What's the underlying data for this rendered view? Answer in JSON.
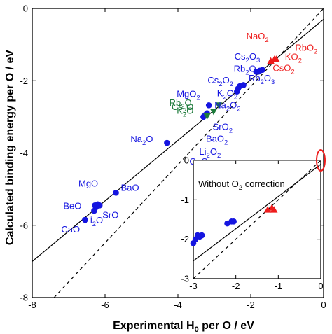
{
  "chart_data": [
    {
      "type": "scatter",
      "title": "",
      "xlabel": {
        "text": "Experimental H",
        "sub": "0",
        "rest": " per O / eV"
      },
      "ylabel": "Calculated binding energy per O / eV",
      "xlim": [
        -8,
        0
      ],
      "ylim": [
        -8,
        0
      ],
      "xticks": [
        -8,
        -6,
        -4,
        -2,
        0
      ],
      "yticks": [
        0,
        -2,
        -4,
        -6,
        -8
      ],
      "x_tick_labels": [
        "-8",
        "-6",
        "-4",
        "-2",
        "0"
      ],
      "y_tick_labels": [
        "0",
        "-2",
        "-4",
        "-6",
        "-8"
      ],
      "colors": {
        "oxide": "#1515e0",
        "superoxide": "#ee1c1c",
        "ozonide": "#1d7a3a"
      },
      "lines": [
        {
          "name": "fit",
          "style": "solid",
          "x": [
            -8,
            0
          ],
          "y": [
            -7.0,
            -0.3
          ]
        },
        {
          "name": "parity",
          "style": "dashed",
          "x": [
            -7.4,
            0
          ],
          "y": [
            -8,
            0
          ]
        }
      ],
      "series": [
        {
          "category": "oxide",
          "marker": "circle",
          "points": [
            {
              "x": -6.55,
              "y": -5.85
            },
            {
              "x": -6.3,
              "y": -5.6
            },
            {
              "x": -6.25,
              "y": -5.5
            },
            {
              "x": -6.2,
              "y": -5.42
            },
            {
              "x": -6.28,
              "y": -5.45
            },
            {
              "x": -6.15,
              "y": -5.45
            },
            {
              "x": -5.7,
              "y": -5.1
            },
            {
              "x": -4.3,
              "y": -3.72
            },
            {
              "x": -3.3,
              "y": -3.0
            },
            {
              "x": -3.25,
              "y": -2.95
            },
            {
              "x": -3.2,
              "y": -2.9
            },
            {
              "x": -3.15,
              "y": -2.68
            },
            {
              "x": -2.38,
              "y": -2.3
            },
            {
              "x": -2.35,
              "y": -2.22
            },
            {
              "x": -2.3,
              "y": -2.15
            },
            {
              "x": -2.2,
              "y": -2.12
            },
            {
              "x": -1.85,
              "y": -1.75
            },
            {
              "x": -1.75,
              "y": -1.72
            },
            {
              "x": -1.68,
              "y": -1.7
            }
          ]
        },
        {
          "category": "ozonide",
          "marker": "triangle-down",
          "points": [
            {
              "x": -3.2,
              "y": -2.98
            },
            {
              "x": -3.02,
              "y": -2.85
            },
            {
              "x": -2.88,
              "y": -2.68
            }
          ]
        },
        {
          "category": "superoxide",
          "marker": "triangle-up",
          "points": [
            {
              "x": -1.45,
              "y": -1.45
            },
            {
              "x": -1.35,
              "y": -1.4
            },
            {
              "x": -1.3,
              "y": -1.4
            }
          ]
        }
      ],
      "labels": [
        {
          "category": "oxide",
          "text": "CaO",
          "x": -6.55,
          "y": -5.85
        },
        {
          "category": "oxide",
          "text": "BeO",
          "x": -6.3,
          "y": -5.45
        },
        {
          "category": "oxide",
          "text": "Li",
          "sub": "2",
          "rest": "O",
          "x": -6.2,
          "y": -5.5
        },
        {
          "category": "oxide",
          "text": "SrO",
          "x": -6.15,
          "y": -5.45
        },
        {
          "category": "oxide",
          "text": "MgO",
          "x": -6.0,
          "y": -5.1
        },
        {
          "category": "oxide",
          "text": "BaO",
          "x": -5.7,
          "y": -5.1
        },
        {
          "category": "oxide",
          "text": "Na",
          "sub": "2",
          "rest": "O",
          "x": -4.3,
          "y": -3.72
        },
        {
          "category": "oxide",
          "text": "MgO",
          "sub": "2",
          "rest": "",
          "x": -3.15,
          "y": -2.68
        },
        {
          "category": "oxide",
          "text": "Cs",
          "sub": "2",
          "rest": "O",
          "sub2": "3",
          "x": -1.68,
          "y": -1.7
        },
        {
          "category": "oxide",
          "text": "Rb",
          "sub": "2",
          "rest": "O",
          "sub2": "2",
          "x": -2.2,
          "y": -2.12
        },
        {
          "category": "oxide",
          "text": "Cs",
          "sub": "2",
          "rest": "O",
          "sub2": "2",
          "x": -2.3,
          "y": -2.15
        },
        {
          "category": "oxide",
          "text": "Rb",
          "sub": "2",
          "rest": "O",
          "sub2": "3",
          "x": -1.75,
          "y": -1.72
        },
        {
          "category": "oxide",
          "text": "K",
          "sub": "2",
          "rest": "O",
          "sub2": "2",
          "x": -2.35,
          "y": -2.22
        },
        {
          "category": "oxide",
          "text": "Na",
          "sub": "2",
          "rest": "O",
          "sub2": "2",
          "x": -2.38,
          "y": -2.3
        },
        {
          "category": "oxide",
          "text": "SrO",
          "sub": "2",
          "rest": "",
          "x": -3.2,
          "y": -2.9
        },
        {
          "category": "oxide",
          "text": "BaO",
          "sub": "2",
          "rest": "",
          "x": -3.25,
          "y": -2.95
        },
        {
          "category": "oxide",
          "text": "Li",
          "sub": "2",
          "rest": "O",
          "sub2": "2",
          "x": -3.3,
          "y": -3.0
        },
        {
          "category": "oxide",
          "text": "CaO",
          "sub": "2",
          "rest": "",
          "x": -3.3,
          "y": -3.0
        },
        {
          "category": "ozonide",
          "text": "Rb",
          "sub": "2",
          "rest": "O",
          "x": -3.2,
          "y": -2.98
        },
        {
          "category": "ozonide",
          "text": "Cs",
          "sub": "2",
          "rest": "O",
          "x": -3.02,
          "y": -2.85
        },
        {
          "category": "ozonide",
          "text": "K",
          "sub": "2",
          "rest": "O",
          "x": -2.88,
          "y": -2.68
        },
        {
          "category": "superoxide",
          "text": "NaO",
          "sub": "2",
          "rest": "",
          "x": -1.45,
          "y": -1.45
        },
        {
          "category": "superoxide",
          "text": "RbO",
          "sub": "2",
          "rest": "",
          "x": -1.3,
          "y": -1.4
        },
        {
          "category": "superoxide",
          "text": "KO",
          "sub": "2",
          "rest": "",
          "x": -1.35,
          "y": -1.4
        },
        {
          "category": "superoxide",
          "text": "CsO",
          "sub": "2",
          "rest": "",
          "x": -1.3,
          "y": -1.4
        }
      ]
    },
    {
      "type": "scatter",
      "title": "",
      "annotation": {
        "text": "Without O",
        "sub": "2",
        "rest": " correction"
      },
      "xlim": [
        -3,
        0
      ],
      "ylim": [
        -3,
        0
      ],
      "xticks": [
        -3,
        -2,
        -1,
        0
      ],
      "yticks": [
        0,
        -1,
        -2,
        -3
      ],
      "x_tick_labels": [
        "-3",
        "-2",
        "-1",
        "0"
      ],
      "y_tick_labels": [
        "0",
        "-1",
        "-2",
        "-3"
      ],
      "lines": [
        {
          "name": "fit",
          "style": "solid",
          "x": [
            -3,
            0
          ],
          "y": [
            -2.55,
            -0.1
          ]
        },
        {
          "name": "parity",
          "style": "dashed",
          "x": [
            -3,
            0
          ],
          "y": [
            -3,
            0
          ]
        },
        {
          "name": "zero",
          "style": "solid",
          "x": [
            -3,
            0
          ],
          "y": [
            0,
            0
          ]
        }
      ],
      "series": [
        {
          "category": "oxide",
          "marker": "circle",
          "points": [
            {
              "x": -3.0,
              "y": -2.1
            },
            {
              "x": -2.95,
              "y": -2.0
            },
            {
              "x": -2.9,
              "y": -1.9
            },
            {
              "x": -2.85,
              "y": -1.95
            },
            {
              "x": -2.8,
              "y": -1.9
            },
            {
              "x": -2.2,
              "y": -1.6
            },
            {
              "x": -2.1,
              "y": -1.55
            },
            {
              "x": -2.05,
              "y": -1.55
            }
          ]
        },
        {
          "category": "superoxide",
          "marker": "triangle-up",
          "points": [
            {
              "x": -1.25,
              "y": -1.25
            },
            {
              "x": -1.15,
              "y": -1.2
            },
            {
              "x": -1.1,
              "y": -1.25
            }
          ]
        }
      ],
      "highlight": {
        "shape": "ellipse",
        "color": "#ee1c1c",
        "x": 0,
        "y": 0
      }
    }
  ]
}
